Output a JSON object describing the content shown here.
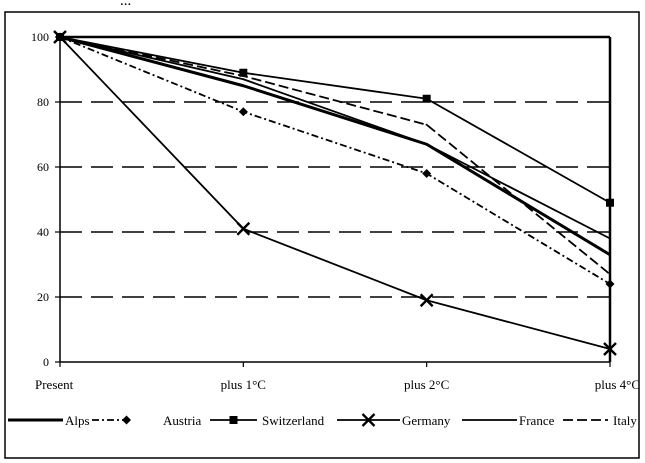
{
  "header_text": "...",
  "chart_data": {
    "type": "line",
    "title": "",
    "xlabel": "",
    "ylabel": "",
    "categories": [
      "Present",
      "plus 1°C",
      "plus 2°C",
      "plus 4°C"
    ],
    "ylim": [
      0,
      100
    ],
    "yticks": [
      0,
      20,
      40,
      60,
      80,
      100
    ],
    "grid": "horizontal dashed",
    "legend_position": "bottom",
    "series": [
      {
        "name": "Alps",
        "values": [
          100,
          85,
          67,
          33
        ],
        "marker": "none",
        "dash": "solid",
        "stroke_weight": "heavy"
      },
      {
        "name": "Austria",
        "values": [
          100,
          77,
          58,
          24
        ],
        "marker": "diamond",
        "dash": "dashdot",
        "stroke_weight": "normal"
      },
      {
        "name": "Switzerland",
        "values": [
          100,
          89,
          81,
          49
        ],
        "marker": "square",
        "dash": "solid",
        "stroke_weight": "normal"
      },
      {
        "name": "Germany",
        "values": [
          100,
          41,
          19,
          4
        ],
        "marker": "x",
        "dash": "solid",
        "stroke_weight": "normal"
      },
      {
        "name": "France",
        "values": [
          100,
          87,
          67,
          38
        ],
        "marker": "none",
        "dash": "solid",
        "stroke_weight": "normal"
      },
      {
        "name": "Italy",
        "values": [
          100,
          88,
          73,
          27
        ],
        "marker": "none",
        "dash": "dashed",
        "stroke_weight": "normal"
      }
    ],
    "colors": {
      "line": "#000000",
      "background": "#ffffff"
    }
  }
}
